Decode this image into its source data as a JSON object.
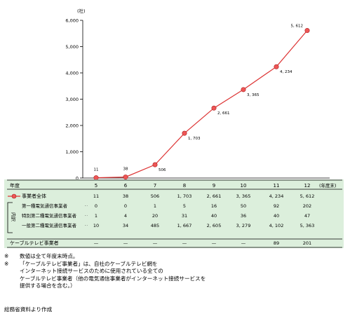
{
  "chart_data": {
    "type": "line",
    "unit_label": "(社)",
    "x": [
      "5",
      "6",
      "7",
      "8",
      "9",
      "10",
      "11",
      "12"
    ],
    "x_unit_label": "(年度末)",
    "ylim": [
      0,
      6000
    ],
    "yticks": [
      "0",
      "1,000",
      "2,000",
      "3,000",
      "4,000",
      "5,000",
      "6,000"
    ],
    "ytick_values": [
      0,
      1000,
      2000,
      3000,
      4000,
      5000,
      6000
    ],
    "series": [
      {
        "name": "事業者全体",
        "values": [
          11,
          38,
          506,
          1703,
          2661,
          3365,
          4234,
          5612
        ],
        "labels": [
          "11",
          "38",
          "506",
          "1, 703",
          "2, 661",
          "3, 365",
          "4, 234",
          "5, 612"
        ],
        "color": "#dd3333"
      }
    ],
    "grid": false,
    "legend": "table-row"
  },
  "table": {
    "header_label": "年度",
    "breakdown_label": "内訳",
    "rows": [
      {
        "label": "事業者全体",
        "values": [
          "11",
          "38",
          "506",
          "1, 703",
          "2, 661",
          "3, 365",
          "4, 234",
          "5, 612"
        ]
      },
      {
        "label": "第一種電気通信事業者",
        "values": [
          "0",
          "0",
          "1",
          "5",
          "16",
          "50",
          "92",
          "202"
        ]
      },
      {
        "label": "特別第二種電気通信事業者",
        "values": [
          "1",
          "4",
          "20",
          "31",
          "40",
          "36",
          "40",
          "47"
        ]
      },
      {
        "label": "一般第二種電気通信事業者",
        "values": [
          "10",
          "34",
          "485",
          "1, 667",
          "2, 605",
          "3, 279",
          "4, 102",
          "5, 363"
        ]
      },
      {
        "label": "ケーブルテレビ事業者",
        "values": [
          "—",
          "—",
          "—",
          "—",
          "—",
          "—",
          "89",
          "201"
        ]
      }
    ]
  },
  "notes": [
    {
      "mark": "※",
      "lines": [
        "数値は全て年度末時点。"
      ]
    },
    {
      "mark": "※",
      "lines": [
        "「ケーブルテレビ事業者」は、自社のケーブルテレビ網を",
        "インターネット接続サービスのために使用されている全ての",
        "ケーブルテレビ事業者（他の電気通信事業者がインターネット接続サービスを",
        "提供する場合を含む。）"
      ]
    }
  ],
  "source": "総務省資料より作成"
}
